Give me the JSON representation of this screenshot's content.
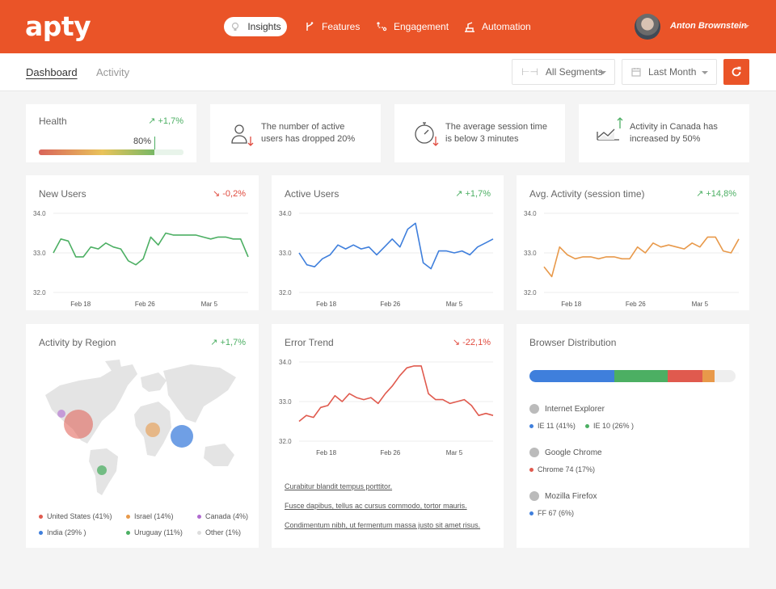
{
  "header": {
    "logo": "apty",
    "nav": [
      {
        "label": "Insights",
        "icon": "bulb-icon"
      },
      {
        "label": "Features",
        "icon": "branch-icon"
      },
      {
        "label": "Engagement",
        "icon": "path-icon"
      },
      {
        "label": "Automation",
        "icon": "automation-icon"
      }
    ],
    "user_name": "Anton Brownstein"
  },
  "subheader": {
    "tabs": [
      "Dashboard",
      "Activity"
    ],
    "segments": "All Segments",
    "period": "Last Month"
  },
  "health": {
    "title": "Health",
    "delta": "+1,7%",
    "value_label": "80%",
    "value": 0.8
  },
  "info_cards": [
    {
      "text1": "The number of active",
      "text2": "users has dropped 20%",
      "icon": "user-down-icon"
    },
    {
      "text1": "The average session time",
      "text2": "is  below 3 minutes",
      "icon": "stopwatch-icon"
    },
    {
      "text1": "Activity in Canada has",
      "text2": "increased by 50%",
      "icon": "growth-chart-icon"
    }
  ],
  "charts": {
    "new_users": {
      "title": "New Users",
      "delta": "-0,2%"
    },
    "active_users": {
      "title": "Active Users",
      "delta": "+1,7%"
    },
    "avg_activity": {
      "title": "Avg. Activity (session time)",
      "delta": "+14,8%"
    },
    "error_trend": {
      "title": "Error Trend",
      "delta": "-22,1%"
    },
    "y_ticks": [
      "34.0",
      "33.0",
      "32.0"
    ],
    "x_ticks": [
      "Feb 18",
      "Feb 26",
      "Mar 5"
    ]
  },
  "chart_data": [
    {
      "type": "line",
      "name_ref": "New Users",
      "color": "#4caf63",
      "ylim": [
        32.0,
        34.0
      ],
      "x_ticks": [
        "Feb 18",
        "Feb 26",
        "Mar 5"
      ],
      "values": [
        33.0,
        33.35,
        33.3,
        32.9,
        32.9,
        33.15,
        33.1,
        33.25,
        33.15,
        33.1,
        32.8,
        32.7,
        32.85,
        33.4,
        33.2,
        33.5,
        33.45,
        33.45,
        33.45,
        33.45,
        33.4,
        33.35,
        33.4,
        33.4,
        33.35,
        33.35,
        32.9
      ]
    },
    {
      "type": "line",
      "name_ref": "Active Users",
      "color": "#3f7fdc",
      "ylim": [
        32.0,
        34.0
      ],
      "x_ticks": [
        "Feb 18",
        "Feb 26",
        "Mar 5"
      ],
      "values": [
        33.0,
        32.7,
        32.65,
        32.85,
        32.95,
        33.2,
        33.1,
        33.2,
        33.1,
        33.15,
        32.95,
        33.15,
        33.35,
        33.15,
        33.6,
        33.75,
        32.75,
        32.6,
        33.05,
        33.05,
        33.0,
        33.05,
        32.95,
        33.15,
        33.25,
        33.35
      ]
    },
    {
      "type": "line",
      "name_ref": "Avg. Activity (session time)",
      "color": "#e8994a",
      "ylim": [
        32.0,
        34.0
      ],
      "x_ticks": [
        "Feb 18",
        "Feb 26",
        "Mar 5"
      ],
      "values": [
        32.65,
        32.4,
        33.15,
        32.95,
        32.85,
        32.9,
        32.9,
        32.85,
        32.9,
        32.9,
        32.85,
        32.85,
        33.15,
        33.0,
        33.25,
        33.15,
        33.2,
        33.15,
        33.1,
        33.25,
        33.15,
        33.4,
        33.4,
        33.05,
        33.0,
        33.35
      ]
    },
    {
      "type": "line",
      "name_ref": "Error Trend",
      "color": "#e05a4e",
      "ylim": [
        32.0,
        34.0
      ],
      "x_ticks": [
        "Feb 18",
        "Feb 26",
        "Mar 5"
      ],
      "values": [
        32.5,
        32.65,
        32.6,
        32.85,
        32.9,
        33.15,
        33.0,
        33.2,
        33.1,
        33.05,
        33.1,
        32.95,
        33.2,
        33.4,
        33.65,
        33.85,
        33.9,
        33.9,
        33.2,
        33.05,
        33.05,
        32.95,
        33.0,
        33.05,
        32.9,
        32.65,
        32.7,
        32.65
      ]
    }
  ],
  "region": {
    "title": "Activity by Region",
    "delta": "+1,7%",
    "legend": [
      {
        "label": "United States (41%)",
        "color": "#e05a4e"
      },
      {
        "label": "Israel (14%)",
        "color": "#e8994a"
      },
      {
        "label": "Canada (4%)",
        "color": "#b06ad0"
      },
      {
        "label": "India (29% )",
        "color": "#3f7fdc"
      },
      {
        "label": "Uruguay (11%)",
        "color": "#4caf63"
      },
      {
        "label": "Other (1%)",
        "color": "#dddddd"
      }
    ]
  },
  "error_links": [
    "Curabitur blandit tempus porttitor.",
    "Fusce dapibus, tellus ac cursus commodo, tortor mauris.",
    "Condimentum nibh, ut fermentum massa justo sit amet risus."
  ],
  "browsers": {
    "title": "Browser Distribution",
    "bar": [
      {
        "color": "#3f7fdc",
        "value": 0.41
      },
      {
        "color": "#4caf63",
        "value": 0.26
      },
      {
        "color": "#e05a4e",
        "value": 0.17
      },
      {
        "color": "#e8994a",
        "value": 0.06
      },
      {
        "color": "#eeeeee",
        "value": 0.1
      }
    ],
    "groups": [
      {
        "name": "Internet Explorer",
        "icon": "ie-icon",
        "items": [
          {
            "label": "IE 11 (41%)",
            "color": "#3f7fdc"
          },
          {
            "label": "IE 10 (26% )",
            "color": "#4caf63"
          }
        ]
      },
      {
        "name": "Google Chrome",
        "icon": "chrome-icon",
        "items": [
          {
            "label": "Chrome 74 (17%)",
            "color": "#e05a4e"
          }
        ]
      },
      {
        "name": "Mozilla Firefox",
        "icon": "firefox-icon",
        "items": [
          {
            "label": "FF 67 (6%)",
            "color": "#3f7fdc"
          }
        ]
      }
    ]
  }
}
